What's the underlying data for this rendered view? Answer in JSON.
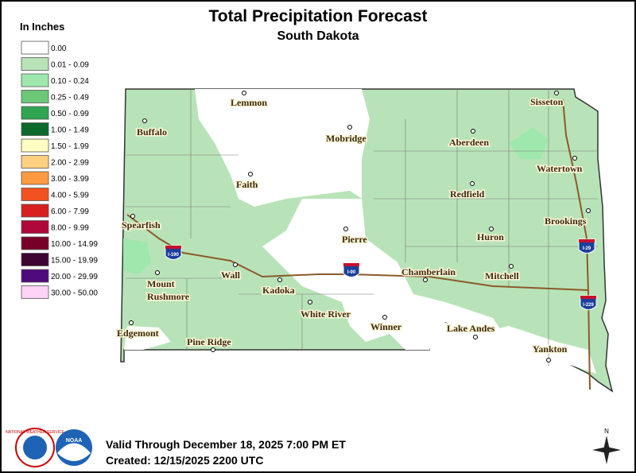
{
  "header": {
    "title": "Total Precipitation Forecast",
    "subtitle": "South Dakota"
  },
  "legend": {
    "title": "In Inches",
    "items": [
      {
        "label": "0.00",
        "color": "#ffffff"
      },
      {
        "label": "0.01 - 0.09",
        "color": "#b8e3b8"
      },
      {
        "label": "0.10 - 0.24",
        "color": "#9fe8ad"
      },
      {
        "label": "0.25 - 0.49",
        "color": "#6cc878"
      },
      {
        "label": "0.50 - 0.99",
        "color": "#2fa551"
      },
      {
        "label": "1.00 - 1.49",
        "color": "#0b6a2c"
      },
      {
        "label": "1.50 - 1.99",
        "color": "#ffffc2"
      },
      {
        "label": "2.00 - 2.99",
        "color": "#ffd080"
      },
      {
        "label": "3.00 - 3.99",
        "color": "#ff9a40"
      },
      {
        "label": "4.00 - 5.99",
        "color": "#f2521f"
      },
      {
        "label": "6.00 - 7.99",
        "color": "#d92020"
      },
      {
        "label": "8.00 - 9.99",
        "color": "#b00838"
      },
      {
        "label": "10.00 - 14.99",
        "color": "#780028"
      },
      {
        "label": "15.00 - 19.99",
        "color": "#3e0432"
      },
      {
        "label": "20.00 - 29.99",
        "color": "#4f0a7e"
      },
      {
        "label": "30.00 - 50.00",
        "color": "#ffd2f6"
      }
    ]
  },
  "map": {
    "cities": [
      [
        "Lemmon"
      ],
      [
        "Mobridge"
      ],
      [
        "Buffalo"
      ],
      [
        "Aberdeen"
      ],
      [
        "Sisseton"
      ],
      [
        "Faith"
      ],
      [
        "Watertown"
      ],
      [
        "Redfield"
      ],
      [
        "Spearfish"
      ],
      [
        "Pierre"
      ],
      [
        "Brookings"
      ],
      [
        "Huron"
      ],
      [
        "Chamberlain"
      ],
      [
        "Mitchell"
      ],
      [
        "Wall"
      ],
      [
        "Kadoka"
      ],
      [
        "Mount",
        "Rushmore"
      ],
      [
        "White River"
      ],
      [
        "Winner"
      ],
      [
        "Lake Andes"
      ],
      [
        "Edgemont"
      ],
      [
        "Pine Ridge"
      ],
      [
        "Yankton"
      ]
    ],
    "highways": [
      "I-190",
      "I-90",
      "I-29",
      "I-229"
    ]
  },
  "logos": [
    "NATIONAL WEATHER SERVICE",
    "NOAA"
  ],
  "footer": {
    "valid": "Valid Through December 18, 2025 7:00 PM ET",
    "created": "Created: 12/15/2025 2200 UTC"
  },
  "compass": "N"
}
